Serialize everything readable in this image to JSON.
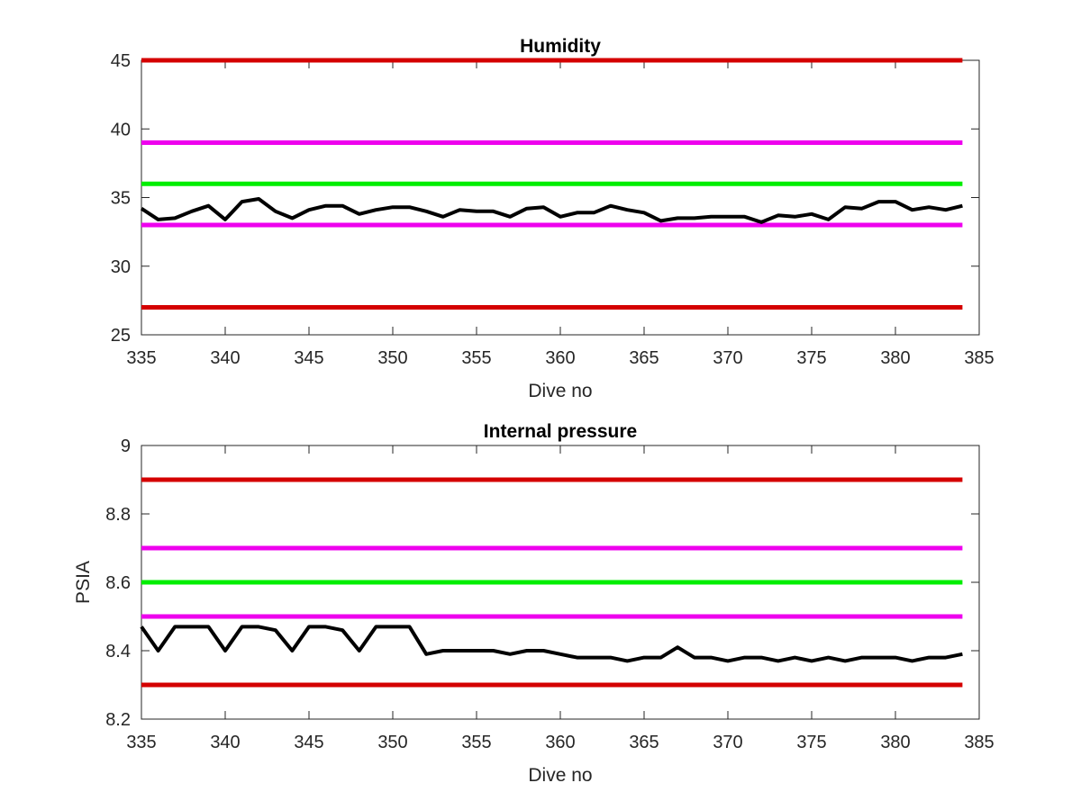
{
  "chart_data": [
    {
      "type": "line",
      "title": "Humidity",
      "xlabel": "Dive no",
      "ylabel": "",
      "xlim": [
        335,
        385
      ],
      "ylim": [
        25,
        45
      ],
      "xticks": [
        335,
        340,
        345,
        350,
        355,
        360,
        365,
        370,
        375,
        380,
        385
      ],
      "yticks": [
        25,
        30,
        35,
        40,
        45
      ],
      "grid": false,
      "series": [
        {
          "color": "#000000",
          "x": [
            335,
            336,
            337,
            338,
            339,
            340,
            341,
            342,
            343,
            344,
            345,
            346,
            347,
            348,
            349,
            350,
            351,
            352,
            353,
            354,
            355,
            356,
            357,
            358,
            359,
            360,
            361,
            362,
            363,
            364,
            365,
            366,
            367,
            368,
            369,
            370,
            371,
            372,
            373,
            374,
            375,
            376,
            377,
            378,
            379,
            380,
            381,
            382,
            383,
            384
          ],
          "y": [
            34.2,
            33.4,
            33.5,
            34.0,
            34.4,
            33.4,
            34.7,
            34.9,
            34.0,
            33.5,
            34.1,
            34.4,
            34.4,
            33.8,
            34.1,
            34.3,
            34.3,
            34.0,
            33.6,
            34.1,
            34.0,
            34.0,
            33.6,
            34.2,
            34.3,
            33.6,
            33.9,
            33.9,
            34.4,
            34.1,
            33.9,
            33.3,
            33.5,
            33.5,
            33.6,
            33.6,
            33.6,
            33.2,
            33.7,
            33.6,
            33.8,
            33.4,
            34.3,
            34.2,
            34.7,
            34.7,
            34.1,
            34.3,
            34.1,
            34.4
          ]
        }
      ],
      "hlines": [
        {
          "y": 45,
          "color": "#d40000"
        },
        {
          "y": 39,
          "color": "#ee00ee"
        },
        {
          "y": 36,
          "color": "#00ee00"
        },
        {
          "y": 33,
          "color": "#ee00ee"
        },
        {
          "y": 27,
          "color": "#d40000"
        }
      ]
    },
    {
      "type": "line",
      "title": "Internal pressure",
      "xlabel": "Dive no",
      "ylabel": "PSIA",
      "xlim": [
        335,
        385
      ],
      "ylim": [
        8.2,
        9.0
      ],
      "xticks": [
        335,
        340,
        345,
        350,
        355,
        360,
        365,
        370,
        375,
        380,
        385
      ],
      "yticks": [
        "8.2",
        "8.4",
        "8.6",
        "8.8",
        "9"
      ],
      "grid": false,
      "series": [
        {
          "color": "#000000",
          "x": [
            335,
            336,
            337,
            338,
            339,
            340,
            341,
            342,
            343,
            344,
            345,
            346,
            347,
            348,
            349,
            350,
            351,
            352,
            353,
            354,
            355,
            356,
            357,
            358,
            359,
            360,
            361,
            362,
            363,
            364,
            365,
            366,
            367,
            368,
            369,
            370,
            371,
            372,
            373,
            374,
            375,
            376,
            377,
            378,
            379,
            380,
            381,
            382,
            383,
            384
          ],
          "y": [
            8.47,
            8.4,
            8.47,
            8.47,
            8.47,
            8.4,
            8.47,
            8.47,
            8.46,
            8.4,
            8.47,
            8.47,
            8.46,
            8.4,
            8.47,
            8.47,
            8.47,
            8.39,
            8.4,
            8.4,
            8.4,
            8.4,
            8.39,
            8.4,
            8.4,
            8.39,
            8.38,
            8.38,
            8.38,
            8.37,
            8.38,
            8.38,
            8.41,
            8.38,
            8.38,
            8.37,
            8.38,
            8.38,
            8.37,
            8.38,
            8.37,
            8.38,
            8.37,
            8.38,
            8.38,
            8.38,
            8.37,
            8.38,
            8.38,
            8.39
          ]
        }
      ],
      "hlines": [
        {
          "y": 8.9,
          "color": "#d40000"
        },
        {
          "y": 8.7,
          "color": "#ee00ee"
        },
        {
          "y": 8.6,
          "color": "#00ee00"
        },
        {
          "y": 8.5,
          "color": "#ee00ee"
        },
        {
          "y": 8.3,
          "color": "#d40000"
        }
      ]
    }
  ]
}
